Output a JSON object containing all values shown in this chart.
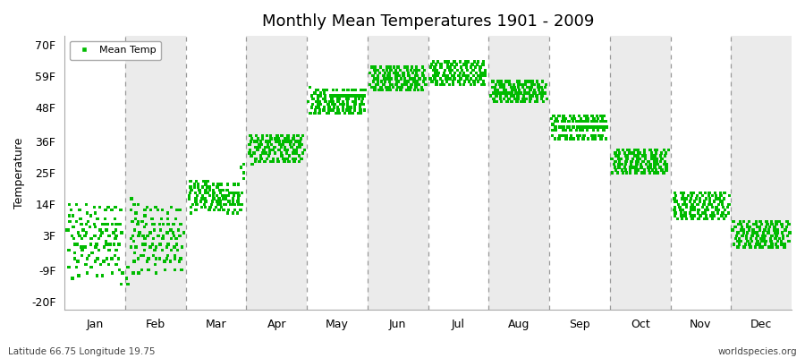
{
  "title": "Monthly Mean Temperatures 1901 - 2009",
  "ylabel": "Temperature",
  "yticks": [
    -20,
    -9,
    3,
    14,
    25,
    36,
    48,
    59,
    70
  ],
  "ytick_labels": [
    "-20F",
    "-9F",
    "3F",
    "14F",
    "25F",
    "36F",
    "48F",
    "59F",
    "70F"
  ],
  "ylim": [
    -23,
    73
  ],
  "months": [
    "Jan",
    "Feb",
    "Mar",
    "Apr",
    "May",
    "Jun",
    "Jul",
    "Aug",
    "Sep",
    "Oct",
    "Nov",
    "Dec"
  ],
  "dot_color": "#00BB00",
  "dot_size": 6,
  "background_color": "#FFFFFF",
  "band_colors": [
    "#FFFFFF",
    "#EBEBEB"
  ],
  "footer_left": "Latitude 66.75 Longitude 19.75",
  "footer_right": "worldspecies.org",
  "legend_label": "Mean Temp",
  "month_data": {
    "Jan": [
      5,
      8,
      14,
      10,
      5,
      -2,
      -8,
      -12,
      3,
      6,
      12,
      0,
      -5,
      10,
      6,
      2,
      -3,
      -8,
      14,
      8,
      4,
      0,
      -6,
      -11,
      3,
      7,
      12,
      -1,
      -4,
      9,
      5,
      2,
      -2,
      -7,
      14,
      7,
      3,
      -1,
      -5,
      -10,
      4,
      8,
      11,
      0,
      -4,
      10,
      6,
      2,
      -3,
      -8,
      13,
      7,
      3,
      -1,
      -6,
      -11,
      3,
      6,
      11,
      0,
      -5,
      9,
      5,
      2,
      -2,
      -7,
      13,
      7,
      3,
      -1,
      -6,
      -11,
      4,
      7,
      12,
      0,
      -5,
      9,
      5,
      1,
      -2,
      -7,
      13,
      7,
      3,
      0,
      -5,
      -10,
      4,
      7,
      12,
      0,
      -4,
      9,
      5,
      2,
      -2,
      -7,
      13,
      7,
      3,
      0,
      -5,
      -9,
      4,
      7,
      12,
      -10,
      -14
    ],
    "Feb": [
      -12,
      -14,
      -8,
      2,
      16,
      12,
      8,
      3,
      -1,
      -6,
      -10,
      5,
      9,
      14,
      1,
      -3,
      11,
      7,
      3,
      -1,
      -5,
      -10,
      14,
      8,
      4,
      0,
      -4,
      -9,
      3,
      8,
      12,
      0,
      -4,
      10,
      6,
      2,
      -2,
      -6,
      13,
      7,
      3,
      -1,
      -5,
      -9,
      4,
      7,
      12,
      0,
      -4,
      9,
      5,
      2,
      -2,
      -7,
      13,
      7,
      3,
      -1,
      -5,
      -10,
      3,
      7,
      12,
      0,
      -5,
      9,
      5,
      2,
      -2,
      -6,
      12,
      7,
      3,
      -1,
      -5,
      -9,
      4,
      7,
      11,
      0,
      -4,
      9,
      5,
      2,
      -2,
      -6,
      13,
      7,
      3,
      -1,
      -5,
      -9,
      4,
      7,
      12,
      0,
      -4,
      9,
      5,
      2,
      -2,
      -6,
      12,
      7,
      3,
      -1,
      -5,
      -9,
      4
    ],
    "Mar": [
      16,
      20,
      18,
      22,
      17,
      13,
      11,
      19,
      21,
      14,
      16,
      20,
      15,
      18,
      22,
      16,
      12,
      20,
      17,
      14,
      19,
      21,
      13,
      16,
      20,
      15,
      18,
      22,
      17,
      13,
      21,
      19,
      14,
      16,
      20,
      15,
      18,
      22,
      17,
      12,
      20,
      18,
      13,
      15,
      19,
      14,
      17,
      21,
      16,
      12,
      19,
      18,
      13,
      15,
      20,
      14,
      17,
      21,
      16,
      12,
      19,
      18,
      13,
      15,
      19,
      14,
      17,
      21,
      16,
      12,
      19,
      17,
      12,
      14,
      19,
      14,
      16,
      21,
      15,
      11,
      18,
      17,
      12,
      14,
      18,
      14,
      16,
      21,
      15,
      11,
      18,
      17,
      12,
      14,
      18,
      14,
      16,
      21,
      15,
      11,
      18,
      17,
      12,
      14,
      18,
      27,
      28,
      25,
      23
    ],
    "Apr": [
      33,
      35,
      32,
      38,
      28,
      33,
      36,
      31,
      37,
      34,
      29,
      36,
      32,
      34,
      38,
      30,
      36,
      33,
      35,
      29,
      37,
      34,
      31,
      36,
      32,
      38,
      30,
      35,
      33,
      37,
      29,
      36,
      32,
      34,
      38,
      30,
      36,
      33,
      35,
      29,
      37,
      34,
      31,
      36,
      32,
      38,
      30,
      35,
      33,
      37,
      29,
      36,
      32,
      34,
      38,
      30,
      36,
      33,
      35,
      29,
      37,
      34,
      31,
      36,
      32,
      38,
      30,
      35,
      33,
      37,
      29,
      36,
      32,
      34,
      38,
      30,
      36,
      33,
      35,
      29,
      37,
      34,
      31,
      36,
      32,
      38,
      30,
      35,
      33,
      37,
      29,
      36,
      32,
      34,
      38,
      30,
      36,
      33,
      35,
      29,
      37,
      34,
      31,
      36,
      32,
      38,
      30,
      35,
      33
    ],
    "May": [
      50,
      52,
      48,
      55,
      46,
      53,
      49,
      51,
      47,
      54,
      50,
      48,
      53,
      46,
      52,
      49,
      51,
      47,
      54,
      50,
      48,
      53,
      46,
      52,
      49,
      51,
      47,
      54,
      50,
      48,
      53,
      46,
      52,
      49,
      51,
      47,
      54,
      50,
      48,
      52,
      46,
      52,
      49,
      51,
      47,
      54,
      50,
      48,
      52,
      46,
      52,
      49,
      51,
      47,
      54,
      50,
      48,
      52,
      46,
      52,
      49,
      51,
      47,
      54,
      50,
      48,
      52,
      46,
      52,
      49,
      51,
      47,
      54,
      50,
      48,
      52,
      46,
      52,
      49,
      51,
      47,
      54,
      50,
      48,
      52,
      46,
      52,
      49,
      51,
      47,
      54,
      50,
      48,
      52,
      46,
      52,
      49,
      51,
      47,
      54,
      50,
      48,
      52,
      46,
      52,
      49,
      51,
      47,
      54
    ],
    "Jun": [
      56,
      60,
      55,
      62,
      57,
      59,
      54,
      61,
      58,
      56,
      60,
      55,
      62,
      57,
      59,
      54,
      61,
      58,
      56,
      60,
      55,
      62,
      57,
      59,
      54,
      61,
      58,
      56,
      60,
      55,
      62,
      57,
      59,
      54,
      61,
      58,
      56,
      60,
      55,
      62,
      57,
      59,
      54,
      61,
      58,
      56,
      60,
      55,
      62,
      57,
      59,
      54,
      61,
      58,
      56,
      60,
      55,
      62,
      57,
      59,
      54,
      61,
      58,
      56,
      60,
      55,
      62,
      57,
      59,
      54,
      61,
      58,
      56,
      60,
      55,
      62,
      57,
      59,
      54,
      61,
      58,
      56,
      60,
      55,
      62,
      57,
      59,
      54,
      61,
      58,
      56,
      60,
      55,
      62,
      57,
      59,
      54,
      61,
      58,
      56,
      60,
      55,
      62,
      57,
      59,
      54,
      61,
      58,
      56
    ],
    "Jul": [
      62,
      58,
      63,
      57,
      61,
      59,
      64,
      56,
      60,
      58,
      62,
      59,
      63,
      57,
      61,
      59,
      64,
      56,
      60,
      58,
      62,
      59,
      63,
      57,
      61,
      59,
      64,
      56,
      60,
      58,
      62,
      59,
      63,
      57,
      61,
      59,
      64,
      56,
      60,
      58,
      62,
      59,
      63,
      57,
      61,
      59,
      64,
      56,
      60,
      58,
      62,
      59,
      63,
      57,
      61,
      59,
      64,
      56,
      60,
      58,
      62,
      59,
      63,
      57,
      61,
      59,
      64,
      56,
      60,
      58,
      62,
      59,
      63,
      57,
      61,
      59,
      64,
      56,
      60,
      58,
      62,
      59,
      63,
      57,
      61,
      59,
      64,
      56,
      60,
      58,
      62,
      59,
      63,
      57,
      61,
      59,
      64,
      56,
      60,
      58,
      62,
      59,
      63,
      57,
      61,
      59,
      64,
      56,
      60
    ],
    "Aug": [
      55,
      52,
      57,
      50,
      54,
      53,
      56,
      51,
      53,
      55,
      52,
      57,
      50,
      54,
      53,
      56,
      51,
      53,
      55,
      52,
      57,
      50,
      54,
      53,
      56,
      51,
      53,
      55,
      52,
      57,
      50,
      54,
      53,
      56,
      51,
      53,
      55,
      52,
      57,
      50,
      54,
      53,
      56,
      51,
      53,
      55,
      52,
      57,
      50,
      54,
      53,
      56,
      51,
      53,
      55,
      52,
      57,
      50,
      54,
      53,
      56,
      51,
      53,
      55,
      52,
      57,
      50,
      54,
      53,
      56,
      51,
      53,
      55,
      52,
      57,
      50,
      54,
      53,
      56,
      51,
      53,
      55,
      52,
      57,
      50,
      54,
      53,
      56,
      51,
      53,
      55,
      52,
      57,
      50,
      54,
      53,
      56,
      51,
      53,
      55,
      52,
      57,
      50,
      54,
      53,
      56,
      51,
      53,
      55
    ],
    "Sep": [
      42,
      40,
      44,
      38,
      43,
      41,
      45,
      37,
      41,
      43,
      40,
      44,
      38,
      43,
      41,
      45,
      37,
      41,
      43,
      40,
      44,
      38,
      43,
      41,
      45,
      37,
      41,
      43,
      40,
      44,
      38,
      43,
      41,
      45,
      37,
      41,
      43,
      40,
      44,
      38,
      43,
      41,
      45,
      37,
      41,
      43,
      40,
      44,
      38,
      43,
      41,
      45,
      37,
      41,
      43,
      40,
      44,
      38,
      43,
      41,
      45,
      37,
      41,
      43,
      40,
      44,
      38,
      43,
      41,
      45,
      37,
      41,
      43,
      40,
      44,
      38,
      43,
      41,
      45,
      37,
      41,
      43,
      40,
      44,
      38,
      43,
      41,
      45,
      37,
      41,
      43,
      40,
      44,
      38,
      43,
      41,
      45,
      37,
      41,
      43,
      40,
      44,
      38,
      43,
      41,
      45,
      37,
      41,
      43
    ],
    "Oct": [
      28,
      30,
      25,
      32,
      27,
      31,
      26,
      29,
      33,
      28,
      30,
      25,
      32,
      27,
      31,
      26,
      29,
      33,
      28,
      30,
      25,
      32,
      27,
      31,
      26,
      29,
      33,
      28,
      30,
      25,
      32,
      27,
      31,
      26,
      29,
      33,
      28,
      30,
      25,
      32,
      27,
      31,
      26,
      29,
      33,
      28,
      30,
      25,
      32,
      27,
      31,
      26,
      29,
      33,
      28,
      30,
      25,
      32,
      27,
      31,
      26,
      29,
      33,
      28,
      30,
      25,
      32,
      27,
      31,
      26,
      29,
      33,
      28,
      30,
      25,
      32,
      27,
      31,
      26,
      29,
      33,
      28,
      30,
      25,
      32,
      27,
      31,
      26,
      29,
      33,
      28,
      30,
      25,
      32,
      27,
      31,
      26,
      29,
      33,
      28,
      30,
      25,
      32,
      27,
      31,
      26,
      29,
      33,
      28
    ],
    "Nov": [
      15,
      12,
      18,
      10,
      16,
      13,
      11,
      17,
      14,
      9,
      15,
      12,
      18,
      10,
      16,
      13,
      11,
      17,
      14,
      9,
      15,
      12,
      18,
      10,
      16,
      13,
      11,
      17,
      14,
      9,
      15,
      12,
      18,
      10,
      16,
      13,
      11,
      17,
      14,
      9,
      15,
      12,
      18,
      10,
      16,
      13,
      11,
      17,
      14,
      9,
      15,
      12,
      18,
      10,
      16,
      13,
      11,
      17,
      14,
      9,
      15,
      12,
      18,
      10,
      16,
      13,
      11,
      17,
      14,
      9,
      15,
      12,
      18,
      10,
      16,
      13,
      11,
      17,
      14,
      9,
      15,
      12,
      18,
      10,
      16,
      13,
      11,
      17,
      14,
      9,
      15,
      12,
      18,
      10,
      16,
      13,
      11,
      17,
      14,
      9,
      15,
      12,
      18,
      10,
      16,
      13,
      11,
      17,
      14
    ],
    "Dec": [
      5,
      2,
      8,
      0,
      6,
      3,
      1,
      7,
      4,
      -1,
      5,
      2,
      8,
      0,
      6,
      3,
      1,
      7,
      4,
      -1,
      5,
      2,
      8,
      0,
      6,
      3,
      1,
      7,
      4,
      -1,
      5,
      2,
      8,
      0,
      6,
      3,
      1,
      7,
      4,
      -1,
      5,
      2,
      8,
      0,
      6,
      3,
      1,
      7,
      4,
      -1,
      5,
      2,
      8,
      0,
      6,
      3,
      1,
      7,
      4,
      -1,
      5,
      2,
      8,
      0,
      6,
      3,
      1,
      7,
      4,
      -1,
      5,
      2,
      8,
      0,
      6,
      3,
      1,
      7,
      4,
      -1,
      5,
      2,
      8,
      0,
      6,
      3,
      1,
      7,
      4,
      -1,
      5,
      2,
      8,
      0,
      6,
      3,
      1,
      7,
      4,
      -1,
      5,
      2,
      8,
      0,
      6,
      3,
      1,
      7,
      4
    ]
  }
}
